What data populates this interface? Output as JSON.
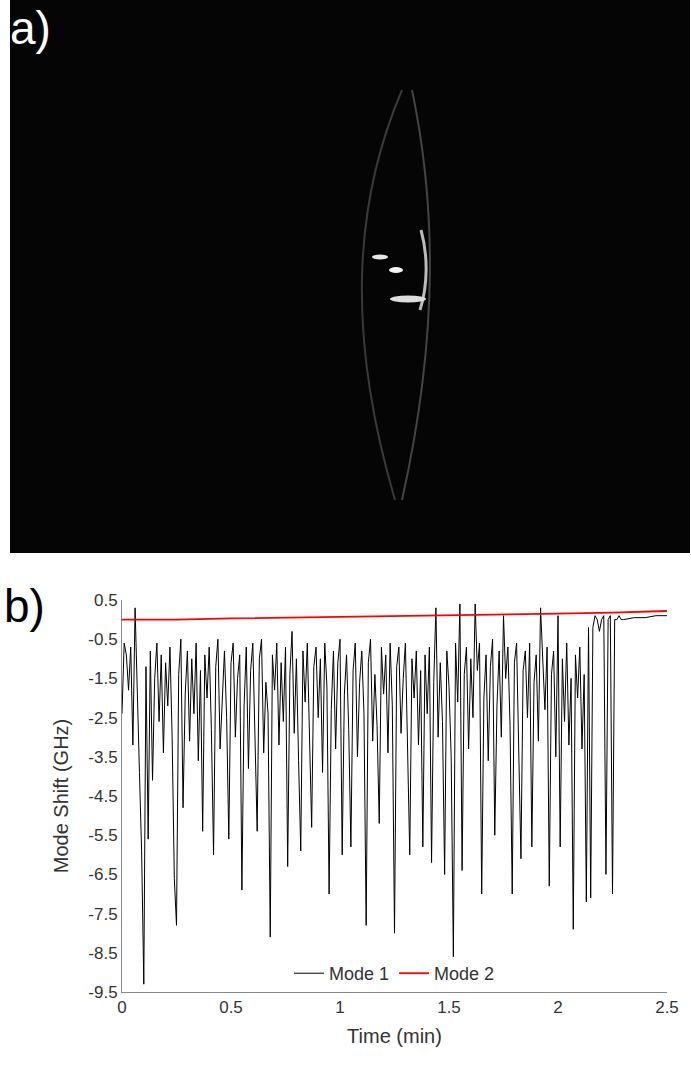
{
  "panel_labels": [
    "a)",
    "b)"
  ],
  "chart_data": {
    "type": "line",
    "xlabel": "Time (min)",
    "ylabel": "Mode Shift (GHz)",
    "xlim": [
      0,
      2.5
    ],
    "xticks": [
      0,
      0.5,
      1,
      1.5,
      2,
      2.5
    ],
    "ylim": [
      -9.5,
      0.5
    ],
    "yticks": [
      0.5,
      -0.5,
      -1.5,
      -2.5,
      -3.5,
      -4.5,
      -5.5,
      -6.5,
      -7.5,
      -8.5,
      -9.5
    ],
    "grid": false,
    "legend": "bottom",
    "series": [
      {
        "name": "Mode 1",
        "color": "#000000",
        "x": [
          0,
          0.01,
          0.02,
          0.03,
          0.04,
          0.05,
          0.06,
          0.07,
          0.08,
          0.09,
          0.1,
          0.11,
          0.12,
          0.13,
          0.14,
          0.15,
          0.16,
          0.17,
          0.18,
          0.19,
          0.2,
          0.21,
          0.22,
          0.23,
          0.24,
          0.25,
          0.26,
          0.27,
          0.28,
          0.29,
          0.3,
          0.31,
          0.32,
          0.33,
          0.34,
          0.35,
          0.36,
          0.37,
          0.38,
          0.39,
          0.4,
          0.41,
          0.42,
          0.43,
          0.44,
          0.45,
          0.46,
          0.47,
          0.48,
          0.49,
          0.5,
          0.51,
          0.52,
          0.53,
          0.54,
          0.55,
          0.56,
          0.57,
          0.58,
          0.59,
          0.6,
          0.61,
          0.62,
          0.63,
          0.64,
          0.65,
          0.66,
          0.67,
          0.68,
          0.69,
          0.7,
          0.71,
          0.72,
          0.73,
          0.74,
          0.75,
          0.76,
          0.77,
          0.78,
          0.79,
          0.8,
          0.81,
          0.82,
          0.83,
          0.84,
          0.85,
          0.86,
          0.87,
          0.88,
          0.89,
          0.9,
          0.91,
          0.92,
          0.93,
          0.94,
          0.95,
          0.96,
          0.97,
          0.98,
          0.99,
          1,
          1.01,
          1.02,
          1.03,
          1.04,
          1.05,
          1.06,
          1.07,
          1.08,
          1.09,
          1.1,
          1.11,
          1.12,
          1.13,
          1.14,
          1.15,
          1.16,
          1.17,
          1.18,
          1.19,
          1.2,
          1.21,
          1.22,
          1.23,
          1.24,
          1.25,
          1.26,
          1.27,
          1.28,
          1.29,
          1.3,
          1.31,
          1.32,
          1.33,
          1.34,
          1.35,
          1.36,
          1.37,
          1.38,
          1.39,
          1.4,
          1.41,
          1.42,
          1.43,
          1.44,
          1.45,
          1.46,
          1.47,
          1.48,
          1.49,
          1.5,
          1.51,
          1.52,
          1.53,
          1.54,
          1.55,
          1.56,
          1.57,
          1.58,
          1.59,
          1.6,
          1.61,
          1.62,
          1.63,
          1.64,
          1.65,
          1.66,
          1.67,
          1.68,
          1.69,
          1.7,
          1.71,
          1.72,
          1.73,
          1.74,
          1.75,
          1.76,
          1.77,
          1.78,
          1.79,
          1.8,
          1.81,
          1.82,
          1.83,
          1.84,
          1.85,
          1.86,
          1.87,
          1.88,
          1.89,
          1.9,
          1.91,
          1.92,
          1.93,
          1.94,
          1.95,
          1.96,
          1.97,
          1.98,
          1.99,
          2,
          2.01,
          2.02,
          2.03,
          2.04,
          2.05,
          2.06,
          2.07,
          2.08,
          2.09,
          2.1,
          2.11,
          2.12,
          2.13,
          2.14,
          2.15,
          2.16,
          2.17,
          2.18,
          2.19,
          2.2,
          2.21,
          2.22,
          2.23,
          2.24,
          2.25,
          2.26,
          2.27,
          2.28,
          2.29,
          2.3,
          2.35,
          2.4,
          2.45,
          2.5
        ],
        "values": [
          -2.4,
          -0.6,
          -0.9,
          -1.8,
          -0.7,
          -3.2,
          0.3,
          -2.1,
          -3.9,
          -5.9,
          -9.3,
          -1.2,
          -5.6,
          -0.8,
          -4.1,
          -1.5,
          -0.6,
          -2.6,
          -0.9,
          -3.4,
          -1.1,
          -2.2,
          -0.7,
          -3.0,
          -6.6,
          -7.8,
          -1.4,
          -0.5,
          -4.8,
          -1.9,
          -0.8,
          -3.1,
          -1.0,
          -2.4,
          -0.6,
          -3.6,
          -1.3,
          -5.4,
          -0.9,
          -2.0,
          -0.7,
          -2.8,
          -6.0,
          -1.2,
          -0.5,
          -3.3,
          -1.8,
          -0.8,
          -2.5,
          -5.6,
          -1.1,
          -0.6,
          -3.0,
          -1.5,
          -0.9,
          -6.9,
          -2.2,
          -0.7,
          -3.8,
          -1.3,
          -0.6,
          -2.7,
          -5.4,
          -1.0,
          -0.5,
          -3.4,
          -1.6,
          -2.4,
          -8.1,
          -0.9,
          -1.8,
          -0.6,
          -3.2,
          -1.1,
          -2.6,
          -0.7,
          -6.3,
          -1.4,
          -0.3,
          -2.9,
          -1.0,
          -3.6,
          -5.9,
          -0.8,
          -2.1,
          -0.6,
          -3.0,
          -5.3,
          -1.2,
          -0.7,
          -2.5,
          -1.0,
          -3.9,
          -0.6,
          -1.7,
          -7.0,
          -2.3,
          -0.8,
          -3.3,
          -1.1,
          -0.5,
          -6.0,
          -1.9,
          -0.9,
          -2.8,
          -5.8,
          -1.3,
          -0.6,
          -3.5,
          -1.6,
          -0.8,
          -2.4,
          -7.8,
          -1.1,
          -0.5,
          -3.1,
          -1.4,
          -2.7,
          -5.2,
          -0.7,
          -1.9,
          -0.9,
          -3.4,
          -0.6,
          -2.2,
          -8.0,
          -1.2,
          -0.7,
          -2.9,
          -1.5,
          -0.6,
          -3.7,
          -6.0,
          -1.0,
          -2.0,
          -0.8,
          -3.2,
          -1.3,
          -5.8,
          -0.9,
          -2.4,
          -0.7,
          -6.2,
          -1.6,
          0.3,
          -3.0,
          -1.1,
          -2.6,
          -6.5,
          -0.8,
          -1.7,
          -3.5,
          -8.6,
          -0.6,
          -2.1,
          0.4,
          -6.4,
          -1.4,
          -0.7,
          -3.3,
          -1.0,
          -2.5,
          0.4,
          -1.3,
          -0.6,
          -7.0,
          -2.0,
          -0.9,
          -3.6,
          -1.2,
          -0.5,
          -5.5,
          -2.2,
          -0.8,
          -3.0,
          0.1,
          -1.5,
          -0.7,
          -2.7,
          -7.0,
          -1.1,
          -0.6,
          -3.4,
          -6.1,
          -1.3,
          -0.8,
          -2.5,
          -0.6,
          -5.8,
          -1.6,
          -0.9,
          -3.1,
          0.3,
          -1.2,
          -2.3,
          -0.7,
          -6.8,
          -1.4,
          -0.8,
          -3.5,
          0.1,
          -5.8,
          -1.0,
          -2.6,
          -0.6,
          -3.2,
          -1.5,
          -7.9,
          -0.9,
          -2.0,
          -0.7,
          -3.3,
          -1.4,
          -7.2,
          -0.2,
          -7.1,
          -0.2,
          0.1,
          0.0,
          -0.3,
          0.0,
          0.1,
          -6.5,
          0.0,
          0.1,
          -7.0,
          0.0,
          0.0,
          0.1,
          0.0,
          0.0,
          0.05,
          0.05,
          0.1,
          0.1
        ]
      },
      {
        "name": "Mode 2",
        "color": "#ff0000",
        "x": [
          0,
          0.25,
          0.5,
          0.75,
          1,
          1.25,
          1.5,
          1.75,
          2,
          2.25,
          2.5
        ],
        "values": [
          0.0,
          0.0,
          0.03,
          0.05,
          0.07,
          0.08,
          0.1,
          0.12,
          0.15,
          0.18,
          0.22
        ]
      }
    ]
  }
}
